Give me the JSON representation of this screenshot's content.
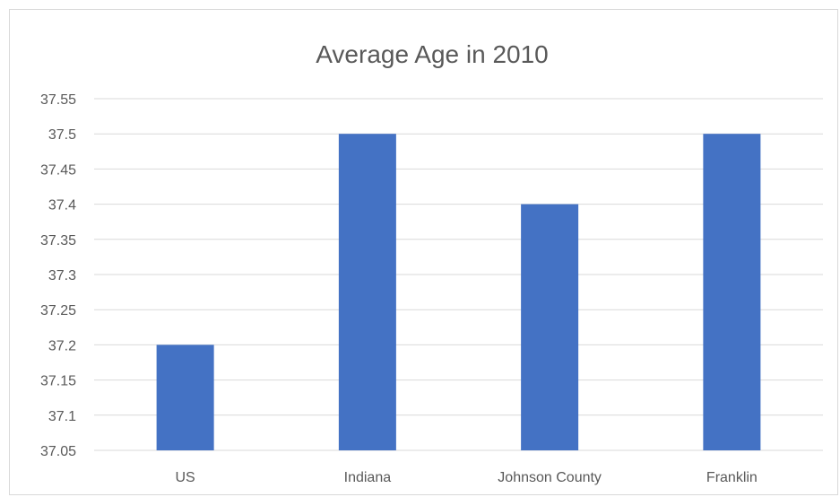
{
  "chart_data": {
    "type": "bar",
    "title": "Average Age in 2010",
    "categories": [
      "US",
      "Indiana",
      "Johnson County",
      "Franklin"
    ],
    "values": [
      37.2,
      37.5,
      37.4,
      37.5
    ],
    "xlabel": "",
    "ylabel": "",
    "ylim": [
      37.05,
      37.55
    ],
    "yticks": [
      "37.05",
      "37.1",
      "37.15",
      "37.2",
      "37.25",
      "37.3",
      "37.35",
      "37.4",
      "37.45",
      "37.5",
      "37.55"
    ],
    "grid": true,
    "legend": "none",
    "bar_color": "#4472c4",
    "grid_color": "#d9d9d9"
  }
}
